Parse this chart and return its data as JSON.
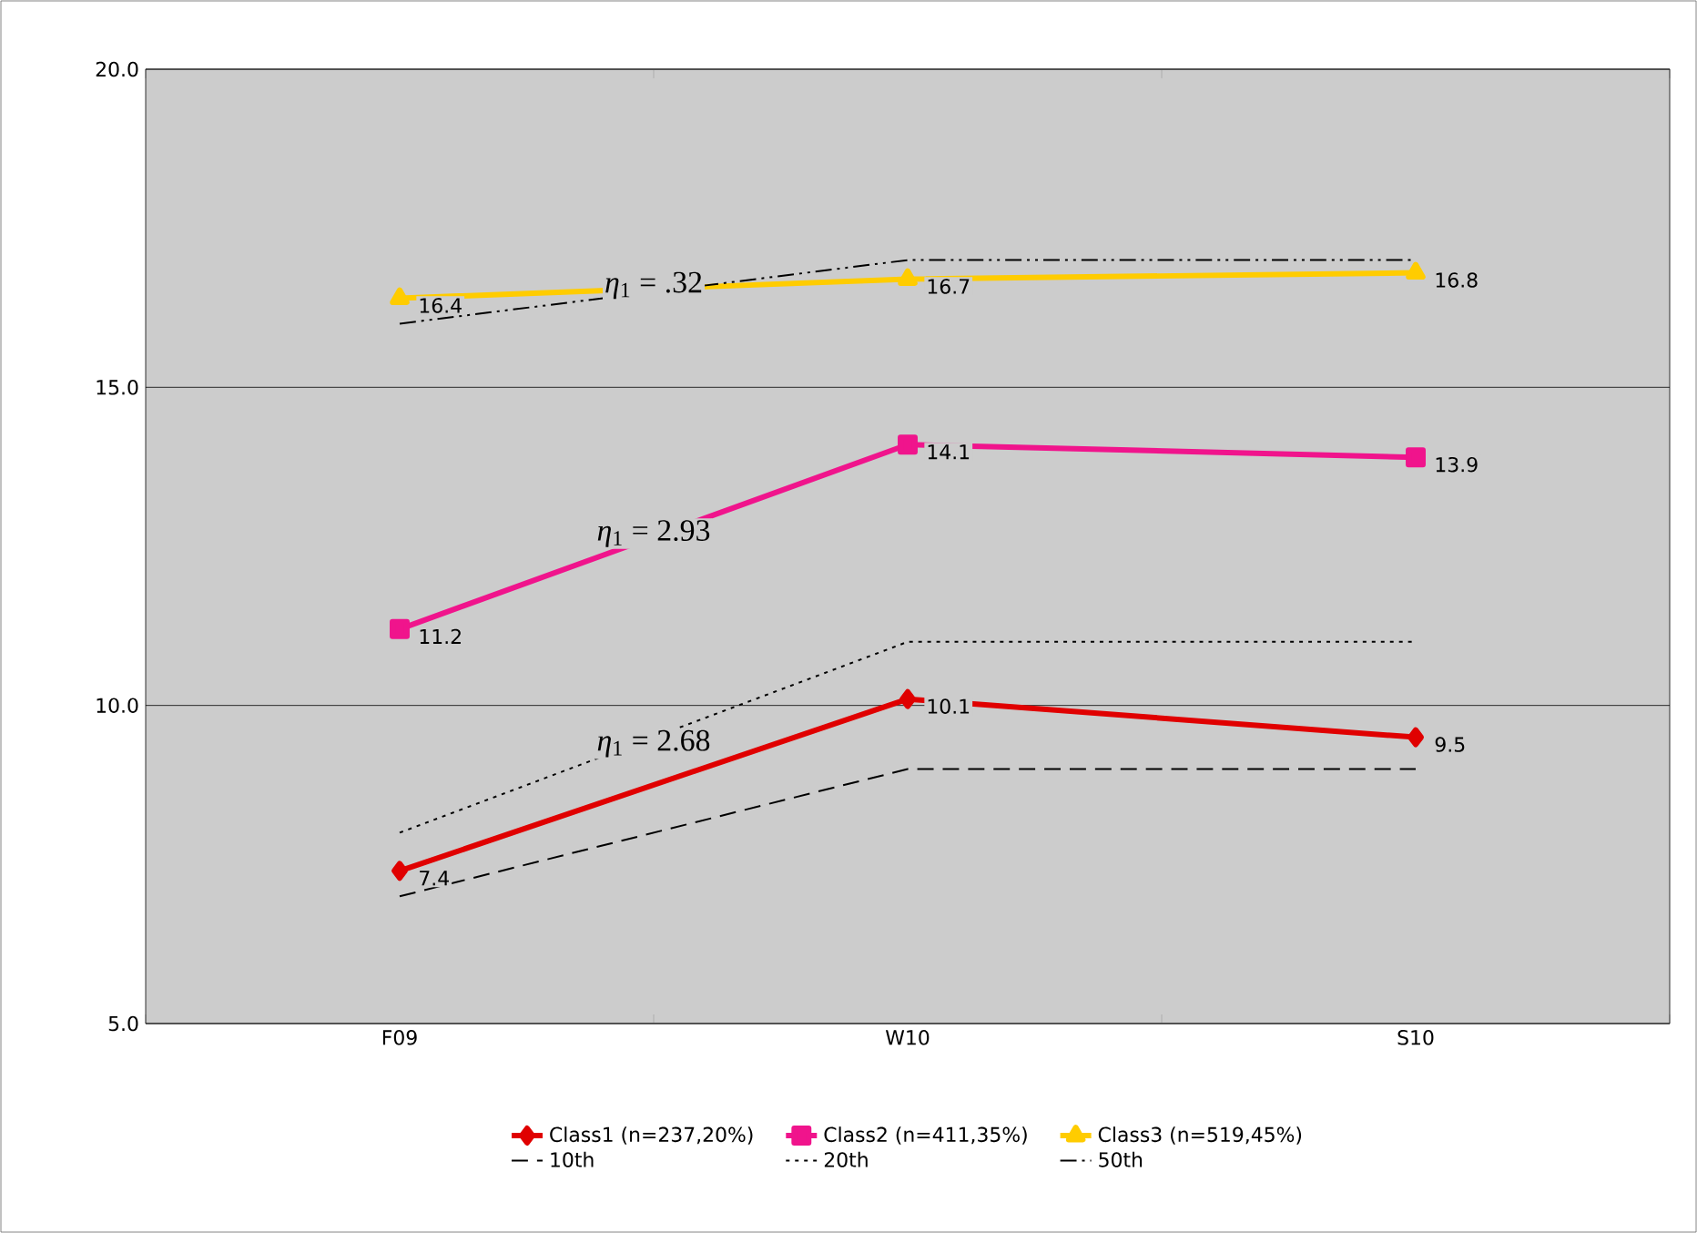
{
  "chart_data": {
    "type": "line",
    "categories": [
      "F09",
      "W10",
      "S10"
    ],
    "series": [
      {
        "name": "Class1 (n=237,20%)",
        "color": "#e00000",
        "values": [
          7.4,
          10.1,
          9.5
        ],
        "marker": "diamond",
        "line_style": "solid",
        "value_labels": [
          "7.4",
          "10.1",
          "9.5"
        ]
      },
      {
        "name": "Class2 (n=411,35%)",
        "color": "#f0148c",
        "values": [
          11.2,
          14.1,
          13.9
        ],
        "marker": "square",
        "line_style": "solid",
        "value_labels": [
          "11.2",
          "14.1",
          "13.9"
        ]
      },
      {
        "name": "Class3 (n=519,45%)",
        "color": "#ffcc00",
        "values": [
          16.4,
          16.7,
          16.8
        ],
        "marker": "triangle",
        "line_style": "solid",
        "value_labels": [
          "16.4",
          "16.7",
          "16.8"
        ]
      },
      {
        "name": "10th",
        "color": "#000000",
        "values": [
          7.0,
          9.0,
          9.0
        ],
        "marker": "none",
        "line_style": "dashed"
      },
      {
        "name": "20th",
        "color": "#000000",
        "values": [
          8.0,
          11.0,
          11.0
        ],
        "marker": "none",
        "line_style": "dotted"
      },
      {
        "name": "50th",
        "color": "#000000",
        "values": [
          16.0,
          17.0,
          17.0
        ],
        "marker": "none",
        "line_style": "dashdotdotted"
      }
    ],
    "ylim": [
      5,
      20
    ],
    "yticks": [
      {
        "value": 5,
        "label": "5.0"
      },
      {
        "value": 10,
        "label": "10.0"
      },
      {
        "value": 15,
        "label": "15.0"
      },
      {
        "value": 20,
        "label": "20.0"
      }
    ],
    "grid": "y",
    "legend": "bottom",
    "annotations": [
      {
        "text": "*η*$_{1}$ = .32",
        "y": 16.6
      },
      {
        "text": "*η*$_{1}$ = 2.93",
        "y": 12.7
      },
      {
        "text": "*η*$_{1}$ = 2.68",
        "y": 9.4
      }
    ]
  }
}
